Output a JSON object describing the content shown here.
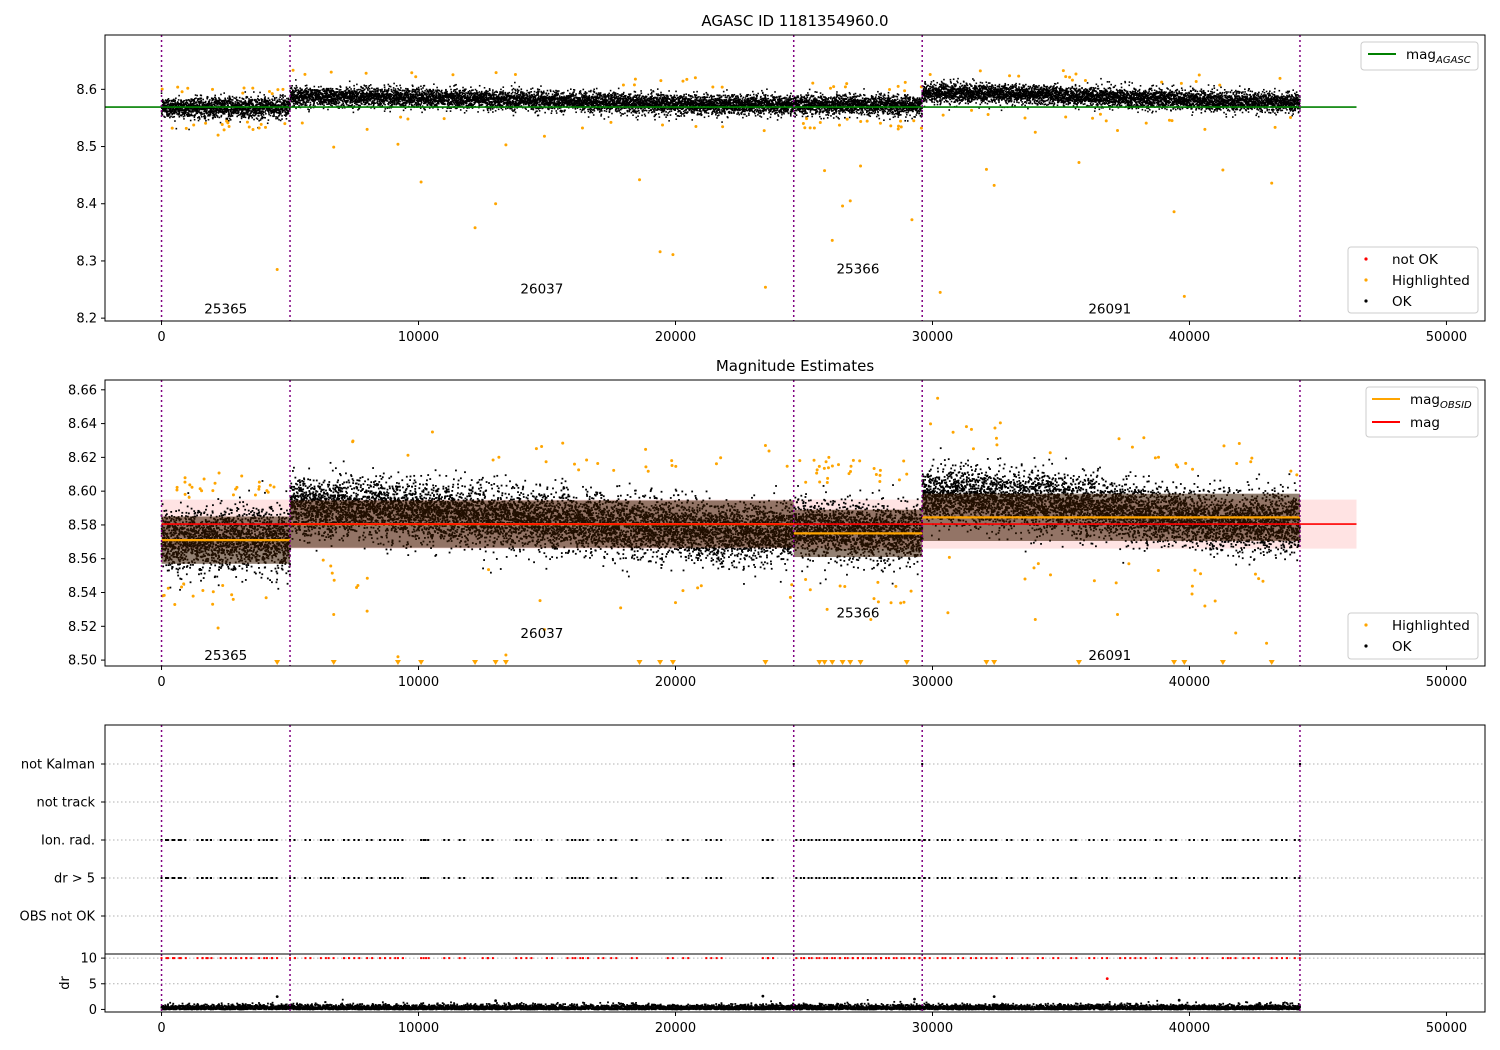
{
  "chart_data": [
    {
      "type": "scatter",
      "title": "AGASC ID 1181354960.0",
      "xlabel": "",
      "ylabel": "",
      "xlim": [
        -2200,
        51500
      ],
      "ylim": [
        8.195,
        8.695
      ],
      "xticks": [
        0,
        10000,
        20000,
        30000,
        40000,
        50000
      ],
      "yticks": [
        8.2,
        8.3,
        8.4,
        8.5,
        8.6
      ],
      "xtick_labels": [
        "0",
        "10000",
        "20000",
        "30000",
        "40000",
        "50000"
      ],
      "ytick_labels": [
        "8.2",
        "8.3",
        "8.4",
        "8.5",
        "8.6"
      ],
      "grid": false,
      "legend_upper": {
        "placement": "upper-right",
        "entries": [
          {
            "label": "mag",
            "subscript": "AGASC",
            "color": "#008000",
            "kind": "line"
          }
        ]
      },
      "legend_lower": {
        "placement": "lower-right",
        "entries": [
          {
            "label": "not OK",
            "color": "#ff0000",
            "kind": "point"
          },
          {
            "label": "Highlighted",
            "color": "#ffa500",
            "kind": "point"
          },
          {
            "label": "OK",
            "color": "#000000",
            "kind": "point"
          }
        ]
      },
      "mag_agasc": 8.569,
      "mag_agasc_x": [
        -2200,
        46500
      ],
      "observation_bounds": [
        0,
        5000,
        24600,
        29600,
        44300
      ],
      "observations": [
        {
          "label": "25365",
          "x_start": 0,
          "x_end": 5000,
          "label_x": 2500,
          "label_y": 8.215,
          "mean": 8.568,
          "spread": 0.014,
          "amp": 0.0,
          "upper_tail": 0.026,
          "lower_tail": 0.022
        },
        {
          "label": "26037",
          "x_start": 5000,
          "x_end": 24600,
          "label_x": 14800,
          "label_y": 8.25,
          "mean": 8.58,
          "spread": 0.013,
          "amp": 0.015,
          "upper_tail": 0.032,
          "lower_tail": 0.024
        },
        {
          "label": "25366",
          "x_start": 24600,
          "x_end": 29600,
          "label_x": 27100,
          "label_y": 8.285,
          "mean": 8.573,
          "spread": 0.013,
          "amp": 0.002,
          "upper_tail": 0.028,
          "lower_tail": 0.024
        },
        {
          "label": "26091",
          "x_start": 29600,
          "x_end": 44300,
          "label_x": 36900,
          "label_y": 8.215,
          "mean": 8.586,
          "spread": 0.013,
          "amp": 0.016,
          "upper_tail": 0.03,
          "lower_tail": 0.026
        }
      ],
      "highlighted_outliers": [
        [
          4500,
          8.285
        ],
        [
          10100,
          8.438
        ],
        [
          12200,
          8.358
        ],
        [
          13000,
          8.4
        ],
        [
          13400,
          8.503
        ],
        [
          14900,
          8.518
        ],
        [
          18600,
          8.442
        ],
        [
          19400,
          8.316
        ],
        [
          19900,
          8.311
        ],
        [
          23500,
          8.254
        ],
        [
          2200,
          8.52
        ],
        [
          9200,
          8.504
        ],
        [
          6700,
          8.499
        ],
        [
          8000,
          8.53
        ],
        [
          25800,
          8.458
        ],
        [
          26100,
          8.336
        ],
        [
          26500,
          8.396
        ],
        [
          26800,
          8.405
        ],
        [
          27200,
          8.466
        ],
        [
          29200,
          8.372
        ],
        [
          30300,
          8.245
        ],
        [
          32100,
          8.46
        ],
        [
          32400,
          8.432
        ],
        [
          35700,
          8.472
        ],
        [
          39400,
          8.386
        ],
        [
          39800,
          8.238
        ],
        [
          41300,
          8.459
        ],
        [
          43200,
          8.436
        ],
        [
          34000,
          8.525
        ],
        [
          37200,
          8.528
        ],
        [
          40600,
          8.53
        ],
        [
          33600,
          8.55
        ]
      ]
    },
    {
      "type": "scatter",
      "title": "Magnitude Estimates",
      "xlabel": "",
      "ylabel": "",
      "xlim": [
        -2200,
        51500
      ],
      "ylim": [
        8.4965,
        8.6658
      ],
      "xticks": [
        0,
        10000,
        20000,
        30000,
        40000,
        50000
      ],
      "yticks": [
        8.5,
        8.52,
        8.54,
        8.56,
        8.58,
        8.6,
        8.62,
        8.64,
        8.66
      ],
      "xtick_labels": [
        "0",
        "10000",
        "20000",
        "30000",
        "40000",
        "50000"
      ],
      "ytick_labels": [
        "8.50",
        "8.52",
        "8.54",
        "8.56",
        "8.58",
        "8.60",
        "8.62",
        "8.64",
        "8.66"
      ],
      "grid": false,
      "legend_upper": {
        "placement": "upper-right",
        "entries": [
          {
            "label": "mag",
            "subscript": "OBSID",
            "color": "#ffa500",
            "kind": "line"
          },
          {
            "label": "mag",
            "subscript": "",
            "color": "#ff0000",
            "kind": "line"
          }
        ]
      },
      "legend_lower": {
        "placement": "lower-right",
        "entries": [
          {
            "label": "Highlighted",
            "color": "#ffa500",
            "kind": "point"
          },
          {
            "label": "OK",
            "color": "#000000",
            "kind": "point"
          }
        ]
      },
      "mag": 8.5805,
      "mag_band": [
        8.566,
        8.595
      ],
      "mag_x": [
        0,
        46500
      ],
      "mag_obsid": [
        {
          "x_start": 0,
          "x_end": 5000,
          "value": 8.571
        },
        {
          "x_start": 5000,
          "x_end": 24600,
          "value": 8.5805
        },
        {
          "x_start": 24600,
          "x_end": 29600,
          "value": 8.575
        },
        {
          "x_start": 29600,
          "x_end": 44300,
          "value": 8.5845
        }
      ],
      "observation_labels": [
        {
          "label": "25365",
          "x": 2500,
          "y": 8.5025
        },
        {
          "label": "26037",
          "x": 14800,
          "y": 8.5155
        },
        {
          "label": "25366",
          "x": 27100,
          "y": 8.5275
        },
        {
          "label": "26091",
          "x": 36900,
          "y": 8.5025
        }
      ],
      "below_range_markers_x": [
        4500,
        6700,
        9200,
        10100,
        12200,
        13000,
        13400,
        18600,
        19400,
        19900,
        23500,
        25600,
        25800,
        26100,
        26500,
        26800,
        27200,
        29000,
        32100,
        32400,
        35700,
        39400,
        39800,
        41300,
        43200
      ],
      "highlighted_outliers": [
        [
          30200,
          8.655
        ],
        [
          23500,
          8.627
        ],
        [
          2200,
          8.519
        ],
        [
          6700,
          8.527
        ],
        [
          8000,
          8.529
        ],
        [
          9200,
          8.502
        ],
        [
          13400,
          8.503
        ],
        [
          14900,
          8.518
        ],
        [
          20000,
          8.534
        ],
        [
          30600,
          8.528
        ],
        [
          34000,
          8.524
        ],
        [
          37200,
          8.527
        ],
        [
          40600,
          8.532
        ],
        [
          41000,
          8.535
        ],
        [
          43000,
          8.51
        ],
        [
          41800,
          8.516
        ],
        [
          25900,
          8.53
        ],
        [
          27600,
          8.524
        ],
        [
          33600,
          8.548
        ],
        [
          36300,
          8.547
        ]
      ]
    },
    {
      "type": "scatter",
      "title": "",
      "xlabel": "",
      "ylabel": "",
      "xlim": [
        -2200,
        51500
      ],
      "xticks": [],
      "yticks": [
        "not Kalman",
        "not track",
        "Ion. rad.",
        "dr > 5",
        "OBS not OK"
      ],
      "ytick_labels": [
        "not Kalman",
        "not track",
        "Ion. rad.",
        "dr > 5",
        "OBS not OK"
      ],
      "grid": "horizontal dotted",
      "flag_rows": [
        {
          "name": "not Kalman",
          "x": [
            24600,
            29600,
            44300
          ]
        },
        {
          "name": "not track",
          "x": []
        },
        {
          "name": "Ion. rad.",
          "x": "shared_flag_x"
        },
        {
          "name": "dr > 5",
          "x": "shared_flag_x"
        },
        {
          "name": "OBS not OK",
          "x": []
        }
      ],
      "shared_flag_x": [
        0,
        250,
        500,
        750,
        1400,
        1600,
        1750,
        2300,
        2700,
        3100,
        3300,
        3800,
        4100,
        4300,
        5000,
        5600,
        6200,
        6500,
        7100,
        7500,
        8000,
        8500,
        8900,
        9200,
        10100,
        10200,
        11000,
        11600,
        12500,
        12700,
        13800,
        14200,
        15000,
        15800,
        16100,
        16400,
        17000,
        17500,
        18300,
        19700,
        20300,
        21200,
        21600,
        23400,
        23600,
        24700,
        25000,
        25300,
        25600,
        25900,
        26200,
        26400,
        26700,
        26900,
        27100,
        27300,
        27600,
        27800,
        28000,
        28300,
        28600,
        28900,
        29100,
        29300,
        29500,
        29700,
        30200,
        30500,
        31000,
        31500,
        31900,
        32300,
        32900,
        33500,
        34100,
        34700,
        35400,
        36100,
        36600,
        37300,
        37700,
        38100,
        38700,
        39300,
        40000,
        40500,
        41300,
        41600,
        42100,
        42500,
        43200,
        43600,
        44100
      ]
    },
    {
      "type": "scatter",
      "title": "",
      "xlabel": "",
      "ylabel": "dr",
      "xlim": [
        -2200,
        51500
      ],
      "ylim": [
        -0.5,
        10.8
      ],
      "xticks": [
        0,
        10000,
        20000,
        30000,
        40000,
        50000
      ],
      "yticks": [
        0,
        5,
        10
      ],
      "xtick_labels": [
        "0",
        "10000",
        "20000",
        "30000",
        "40000",
        "50000"
      ],
      "ytick_labels": [
        "0",
        "5",
        "10"
      ],
      "grid": "horizontal dotted",
      "dr_typical_max": 1.0,
      "dr_clipped_value": 10,
      "dr_outliers": [
        [
          36800,
          6.0
        ],
        [
          4500,
          2.5
        ],
        [
          23400,
          2.6
        ],
        [
          32400,
          2.5
        ],
        [
          39600,
          1.8
        ],
        [
          13000,
          1.7
        ],
        [
          29300,
          2.0
        ]
      ]
    }
  ]
}
